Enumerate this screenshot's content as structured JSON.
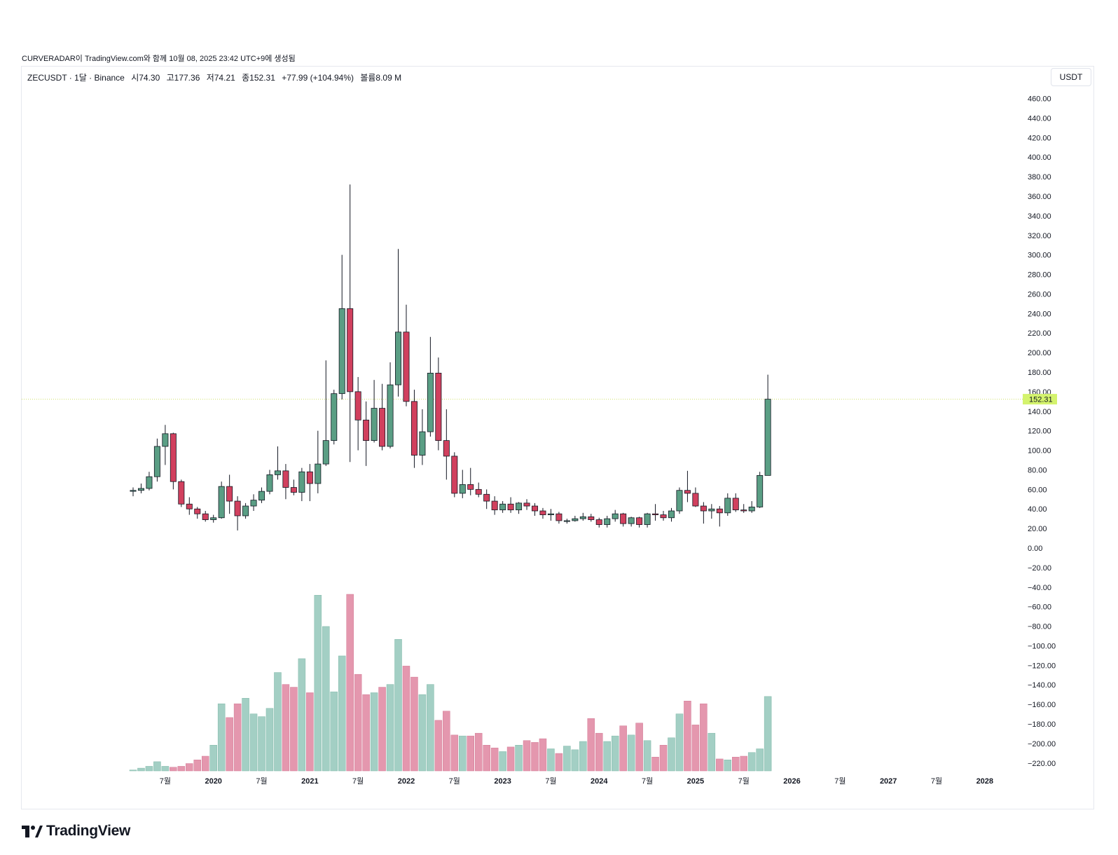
{
  "credit": "CURVERADAR이 TradingView.com와 함께 10월 08, 2025 23:42 UTC+9에 생성됨",
  "legend": {
    "symbol": "ZECUSDT · 1달 · Binance",
    "open": "시74.30",
    "high": "고177.36",
    "low": "저74.21",
    "close": "종152.31",
    "change": "+77.99 (+104.94%)",
    "volume": "볼륨8.09 M"
  },
  "currency_button": "USDT",
  "brand": "TradingView",
  "colors": {
    "up": "#5a9e84",
    "down": "#d1405e",
    "up_volume": "#a3cfc4",
    "down_volume": "#e497ae",
    "price_line": "#cfe06a",
    "last_price_bg": "#d4f36d"
  },
  "chart_data": {
    "type": "candlestick",
    "interval": "monthly",
    "last_price_label": "152.31",
    "ylim": [
      -230,
      460
    ],
    "y_ticks": [
      "460.00",
      "440.00",
      "420.00",
      "400.00",
      "380.00",
      "360.00",
      "340.00",
      "320.00",
      "300.00",
      "280.00",
      "260.00",
      "240.00",
      "220.00",
      "200.00",
      "180.00",
      "160.00",
      "140.00",
      "120.00",
      "100.00",
      "80.00",
      "60.00",
      "40.00",
      "20.00",
      "0.00",
      "−20.00",
      "−40.00",
      "−60.00",
      "−80.00",
      "−100.00",
      "−120.00",
      "−140.00",
      "−160.00",
      "−180.00",
      "−200.00",
      "−220.00"
    ],
    "x_ticks": [
      {
        "label": "7월",
        "bold": false,
        "date": "2019-07"
      },
      {
        "label": "2020",
        "bold": true,
        "date": "2020-01"
      },
      {
        "label": "7월",
        "bold": false,
        "date": "2020-07"
      },
      {
        "label": "2021",
        "bold": true,
        "date": "2021-01"
      },
      {
        "label": "7월",
        "bold": false,
        "date": "2021-07"
      },
      {
        "label": "2022",
        "bold": true,
        "date": "2022-01"
      },
      {
        "label": "7월",
        "bold": false,
        "date": "2022-07"
      },
      {
        "label": "2023",
        "bold": true,
        "date": "2023-01"
      },
      {
        "label": "7월",
        "bold": false,
        "date": "2023-07"
      },
      {
        "label": "2024",
        "bold": true,
        "date": "2024-01"
      },
      {
        "label": "7월",
        "bold": false,
        "date": "2024-07"
      },
      {
        "label": "2025",
        "bold": true,
        "date": "2025-01"
      },
      {
        "label": "7월",
        "bold": false,
        "date": "2025-07"
      },
      {
        "label": "2026",
        "bold": true,
        "date": "2026-01"
      },
      {
        "label": "7월",
        "bold": false,
        "date": "2026-07"
      },
      {
        "label": "2027",
        "bold": true,
        "date": "2027-01"
      },
      {
        "label": "7월",
        "bold": false,
        "date": "2027-07"
      },
      {
        "label": "2028",
        "bold": true,
        "date": "2028-01"
      }
    ],
    "candles": [
      {
        "date": "2019-03",
        "o": 58,
        "h": 62,
        "l": 53,
        "c": 59,
        "v": 0.1
      },
      {
        "date": "2019-04",
        "o": 59,
        "h": 66,
        "l": 56,
        "c": 61,
        "v": 0.3
      },
      {
        "date": "2019-05",
        "o": 61,
        "h": 78,
        "l": 59,
        "c": 73,
        "v": 0.5
      },
      {
        "date": "2019-06",
        "o": 73,
        "h": 112,
        "l": 68,
        "c": 104,
        "v": 1.0
      },
      {
        "date": "2019-07",
        "o": 104,
        "h": 126,
        "l": 85,
        "c": 117,
        "v": 0.5
      },
      {
        "date": "2019-08",
        "o": 117,
        "h": 118,
        "l": 60,
        "c": 68,
        "v": 0.4
      },
      {
        "date": "2019-09",
        "o": 68,
        "h": 70,
        "l": 42,
        "c": 45,
        "v": 0.5
      },
      {
        "date": "2019-10",
        "o": 45,
        "h": 52,
        "l": 34,
        "c": 40,
        "v": 0.8
      },
      {
        "date": "2019-11",
        "o": 40,
        "h": 42,
        "l": 30,
        "c": 35,
        "v": 1.2
      },
      {
        "date": "2019-12",
        "o": 35,
        "h": 38,
        "l": 27,
        "c": 29,
        "v": 1.6
      },
      {
        "date": "2020-01",
        "o": 29,
        "h": 34,
        "l": 26,
        "c": 31,
        "v": 2.8
      },
      {
        "date": "2020-02",
        "o": 31,
        "h": 68,
        "l": 30,
        "c": 63,
        "v": 7.3
      },
      {
        "date": "2020-03",
        "o": 63,
        "h": 75,
        "l": 35,
        "c": 48,
        "v": 5.8
      },
      {
        "date": "2020-04",
        "o": 48,
        "h": 53,
        "l": 18,
        "c": 33,
        "v": 7.3
      },
      {
        "date": "2020-05",
        "o": 33,
        "h": 46,
        "l": 30,
        "c": 43,
        "v": 7.9
      },
      {
        "date": "2020-06",
        "o": 43,
        "h": 55,
        "l": 38,
        "c": 49,
        "v": 6.2
      },
      {
        "date": "2020-07",
        "o": 49,
        "h": 62,
        "l": 46,
        "c": 58,
        "v": 5.9
      },
      {
        "date": "2020-08",
        "o": 58,
        "h": 80,
        "l": 55,
        "c": 75,
        "v": 6.8
      },
      {
        "date": "2020-09",
        "o": 75,
        "h": 104,
        "l": 70,
        "c": 79,
        "v": 10.7
      },
      {
        "date": "2020-10",
        "o": 79,
        "h": 86,
        "l": 50,
        "c": 62,
        "v": 9.4
      },
      {
        "date": "2020-11",
        "o": 62,
        "h": 70,
        "l": 54,
        "c": 57,
        "v": 9.1
      },
      {
        "date": "2020-12",
        "o": 57,
        "h": 82,
        "l": 48,
        "c": 78,
        "v": 12.2
      },
      {
        "date": "2021-01",
        "o": 78,
        "h": 86,
        "l": 48,
        "c": 66,
        "v": 8.5
      },
      {
        "date": "2021-02",
        "o": 66,
        "h": 120,
        "l": 56,
        "c": 86,
        "v": 19.1
      },
      {
        "date": "2021-03",
        "o": 86,
        "h": 192,
        "l": 84,
        "c": 110,
        "v": 15.7
      },
      {
        "date": "2021-04",
        "o": 110,
        "h": 162,
        "l": 106,
        "c": 158,
        "v": 8.6
      },
      {
        "date": "2021-05",
        "o": 158,
        "h": 300,
        "l": 152,
        "c": 245,
        "v": 12.5
      },
      {
        "date": "2021-06",
        "o": 245,
        "h": 372,
        "l": 88,
        "c": 160,
        "v": 19.2
      },
      {
        "date": "2021-07",
        "o": 160,
        "h": 175,
        "l": 100,
        "c": 131,
        "v": 10.5
      },
      {
        "date": "2021-08",
        "o": 131,
        "h": 150,
        "l": 84,
        "c": 110,
        "v": 8.3
      },
      {
        "date": "2021-09",
        "o": 110,
        "h": 172,
        "l": 108,
        "c": 143,
        "v": 8.5
      },
      {
        "date": "2021-10",
        "o": 143,
        "h": 168,
        "l": 100,
        "c": 104,
        "v": 9.1
      },
      {
        "date": "2021-11",
        "o": 104,
        "h": 190,
        "l": 102,
        "c": 167,
        "v": 9.4
      },
      {
        "date": "2021-12",
        "o": 167,
        "h": 306,
        "l": 155,
        "c": 221,
        "v": 14.3
      },
      {
        "date": "2022-01",
        "o": 221,
        "h": 249,
        "l": 145,
        "c": 150,
        "v": 11.4
      },
      {
        "date": "2022-02",
        "o": 150,
        "h": 162,
        "l": 82,
        "c": 95,
        "v": 10.2
      },
      {
        "date": "2022-03",
        "o": 95,
        "h": 142,
        "l": 85,
        "c": 119,
        "v": 8.3
      },
      {
        "date": "2022-04",
        "o": 119,
        "h": 216,
        "l": 114,
        "c": 179,
        "v": 9.4
      },
      {
        "date": "2022-05",
        "o": 179,
        "h": 195,
        "l": 100,
        "c": 110,
        "v": 5.5
      },
      {
        "date": "2022-06",
        "o": 110,
        "h": 142,
        "l": 70,
        "c": 94,
        "v": 6.5
      },
      {
        "date": "2022-07",
        "o": 94,
        "h": 98,
        "l": 52,
        "c": 56,
        "v": 3.9
      },
      {
        "date": "2022-08",
        "o": 56,
        "h": 80,
        "l": 51,
        "c": 65,
        "v": 3.8
      },
      {
        "date": "2022-09",
        "o": 65,
        "h": 82,
        "l": 54,
        "c": 60,
        "v": 3.8
      },
      {
        "date": "2022-10",
        "o": 60,
        "h": 67,
        "l": 52,
        "c": 55,
        "v": 4.1
      },
      {
        "date": "2022-11",
        "o": 55,
        "h": 60,
        "l": 40,
        "c": 48,
        "v": 2.8
      },
      {
        "date": "2022-12",
        "o": 48,
        "h": 53,
        "l": 34,
        "c": 39,
        "v": 2.5
      },
      {
        "date": "2023-01",
        "o": 39,
        "h": 48,
        "l": 36,
        "c": 45,
        "v": 2.1
      },
      {
        "date": "2023-02",
        "o": 45,
        "h": 52,
        "l": 36,
        "c": 39,
        "v": 2.6
      },
      {
        "date": "2023-03",
        "o": 39,
        "h": 47,
        "l": 35,
        "c": 46,
        "v": 2.8
      },
      {
        "date": "2023-04",
        "o": 46,
        "h": 50,
        "l": 39,
        "c": 43,
        "v": 3.3
      },
      {
        "date": "2023-05",
        "o": 43,
        "h": 46,
        "l": 33,
        "c": 38,
        "v": 3.1
      },
      {
        "date": "2023-06",
        "o": 38,
        "h": 41,
        "l": 30,
        "c": 34,
        "v": 3.5
      },
      {
        "date": "2023-07",
        "o": 34,
        "h": 40,
        "l": 28,
        "c": 35,
        "v": 2.4
      },
      {
        "date": "2023-08",
        "o": 35,
        "h": 37,
        "l": 25,
        "c": 28,
        "v": 1.9
      },
      {
        "date": "2023-09",
        "o": 28,
        "h": 30,
        "l": 25,
        "c": 28,
        "v": 2.7
      },
      {
        "date": "2023-10",
        "o": 28,
        "h": 33,
        "l": 27,
        "c": 30,
        "v": 2.3
      },
      {
        "date": "2023-11",
        "o": 30,
        "h": 36,
        "l": 28,
        "c": 32,
        "v": 3.2
      },
      {
        "date": "2023-12",
        "o": 32,
        "h": 35,
        "l": 27,
        "c": 29,
        "v": 5.7
      },
      {
        "date": "2024-01",
        "o": 29,
        "h": 31,
        "l": 21,
        "c": 24,
        "v": 4.1
      },
      {
        "date": "2024-02",
        "o": 24,
        "h": 33,
        "l": 21,
        "c": 30,
        "v": 3.2
      },
      {
        "date": "2024-03",
        "o": 30,
        "h": 39,
        "l": 27,
        "c": 35,
        "v": 3.8
      },
      {
        "date": "2024-04",
        "o": 35,
        "h": 36,
        "l": 22,
        "c": 25,
        "v": 4.9
      },
      {
        "date": "2024-05",
        "o": 25,
        "h": 32,
        "l": 22,
        "c": 31,
        "v": 3.9
      },
      {
        "date": "2024-06",
        "o": 31,
        "h": 32,
        "l": 21,
        "c": 24,
        "v": 5.2
      },
      {
        "date": "2024-07",
        "o": 24,
        "h": 36,
        "l": 21,
        "c": 35,
        "v": 3.3
      },
      {
        "date": "2024-08",
        "o": 35,
        "h": 45,
        "l": 28,
        "c": 34,
        "v": 1.5
      },
      {
        "date": "2024-09",
        "o": 34,
        "h": 38,
        "l": 28,
        "c": 31,
        "v": 2.8
      },
      {
        "date": "2024-10",
        "o": 31,
        "h": 41,
        "l": 27,
        "c": 38,
        "v": 3.6
      },
      {
        "date": "2024-11",
        "o": 38,
        "h": 62,
        "l": 35,
        "c": 59,
        "v": 6.2
      },
      {
        "date": "2024-12",
        "o": 59,
        "h": 79,
        "l": 47,
        "c": 56,
        "v": 7.6
      },
      {
        "date": "2025-01",
        "o": 56,
        "h": 62,
        "l": 42,
        "c": 43,
        "v": 5.0
      },
      {
        "date": "2025-02",
        "o": 43,
        "h": 47,
        "l": 25,
        "c": 38,
        "v": 7.3
      },
      {
        "date": "2025-03",
        "o": 38,
        "h": 45,
        "l": 30,
        "c": 40,
        "v": 4.1
      },
      {
        "date": "2025-04",
        "o": 40,
        "h": 43,
        "l": 22,
        "c": 36,
        "v": 1.3
      },
      {
        "date": "2025-05",
        "o": 36,
        "h": 56,
        "l": 33,
        "c": 51,
        "v": 1.2
      },
      {
        "date": "2025-06",
        "o": 51,
        "h": 56,
        "l": 37,
        "c": 39,
        "v": 1.5
      },
      {
        "date": "2025-07",
        "o": 39,
        "h": 45,
        "l": 36,
        "c": 38,
        "v": 1.6
      },
      {
        "date": "2025-08",
        "o": 38,
        "h": 48,
        "l": 36,
        "c": 42,
        "v": 2.0
      },
      {
        "date": "2025-09",
        "o": 42,
        "h": 78,
        "l": 41,
        "c": 74.3,
        "v": 2.4
      },
      {
        "date": "2025-10",
        "o": 74.3,
        "h": 177.36,
        "l": 74.21,
        "c": 152.31,
        "v": 8.09
      }
    ]
  }
}
